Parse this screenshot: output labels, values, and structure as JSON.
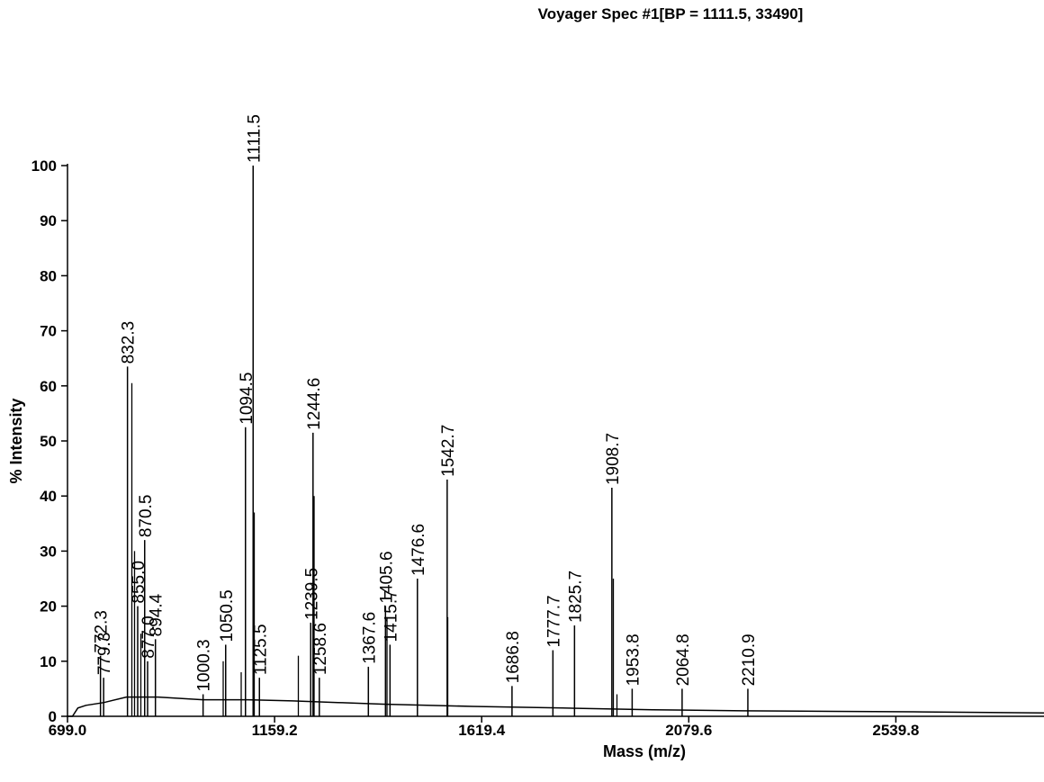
{
  "chart_data": {
    "type": "spectrum",
    "title": "Voyager Spec #1[BP = 1111.5, 33490]",
    "xlabel": "Mass (m/z)",
    "ylabel": "% Intensity",
    "color": "#000000",
    "xlim": [
      699,
      2869
    ],
    "xticks": [
      {
        "value": 699,
        "label": "699.0"
      },
      1159.2,
      1619.4,
      2079.6,
      2539.8
    ],
    "ylim": [
      0,
      100
    ],
    "yticks": [
      0,
      10,
      20,
      30,
      40,
      50,
      60,
      70,
      80,
      90,
      100
    ],
    "peaks": {
      "x": [
        772.3,
        779.3,
        832.3,
        {
          "value": 855,
          "label": "855.0"
        },
        870.5,
        {
          "value": 877,
          "label": "877.0"
        },
        894.4,
        1000.3,
        1050.5,
        1094.5,
        1111.5,
        1125.5,
        1239.5,
        1244.6,
        1258.6,
        1367.6,
        1405.6,
        1415.7,
        1476.6,
        1542.7,
        1686.8,
        1777.7,
        1825.7,
        1908.7,
        1953.8,
        2064.8,
        2210.9
      ],
      "values": [
        11,
        7,
        63.5,
        20,
        32,
        10,
        14,
        4,
        13,
        52.5,
        100,
        7,
        17,
        51.5,
        7,
        9,
        20,
        13,
        25,
        43,
        5.5,
        12,
        16.5,
        41.5,
        5,
        5,
        5
      ]
    },
    "unlabeled_peaks": {
      "x": [
        842,
        848,
        862,
        1045,
        1085,
        1114,
        1212,
        1247,
        1409,
        1544,
        1912,
        1920
      ],
      "values": [
        60.5,
        30,
        15,
        10,
        8,
        37,
        11,
        40,
        18,
        18,
        25,
        4
      ]
    },
    "baseline": {
      "x": [
        699,
        710,
        722,
        740,
        780,
        830,
        900,
        1000,
        1100,
        1200,
        1300,
        1400,
        1600,
        1800,
        2000,
        2200,
        2400,
        2600,
        2869
      ],
      "values": [
        0,
        0,
        1.5,
        2,
        2.5,
        3.5,
        3.5,
        3,
        3,
        2.8,
        2.5,
        2.2,
        1.8,
        1.5,
        1.2,
        1,
        0.9,
        0.8,
        0.6
      ]
    }
  }
}
